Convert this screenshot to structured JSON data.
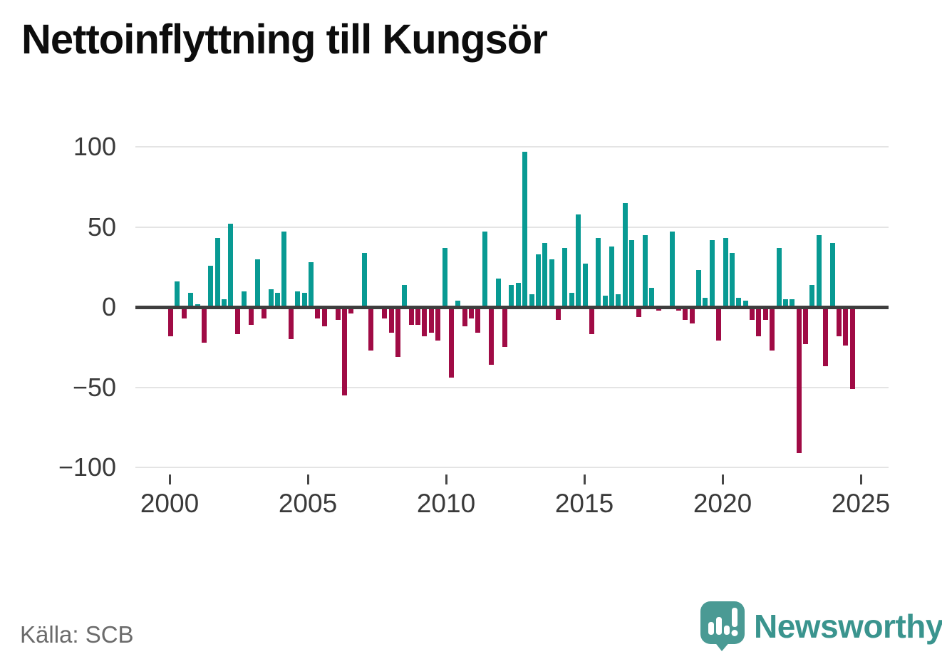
{
  "title": "Nettoinflyttning till Kungsör",
  "source": "Källa: SCB",
  "branding": {
    "name": "Newsworthy",
    "icon": "speech-bubble-bar-chart-icon",
    "color": "#3a948e"
  },
  "chart_data": {
    "type": "bar",
    "title": "Nettoinflyttning till Kungsör",
    "x_unit": "quarter",
    "x_start": "2000-Q1",
    "x_end": "2025-Q3",
    "values": [
      -18,
      16,
      -7,
      9,
      2,
      -22,
      26,
      43,
      5,
      52,
      -17,
      10,
      -11,
      30,
      -7,
      11,
      9,
      47,
      -20,
      10,
      9,
      28,
      -7,
      -12,
      0,
      -8,
      -55,
      -4,
      0,
      34,
      -27,
      0,
      -7,
      -16,
      -31,
      14,
      -11,
      -11,
      -18,
      -16,
      -21,
      37,
      -44,
      4,
      -12,
      -7,
      -16,
      47,
      -36,
      18,
      -25,
      14,
      15,
      97,
      8,
      33,
      40,
      30,
      -8,
      37,
      9,
      58,
      27,
      -17,
      43,
      7,
      38,
      8,
      65,
      42,
      -6,
      45,
      12,
      -2,
      0,
      47,
      -2,
      -8,
      -10,
      23,
      6,
      42,
      -21,
      43,
      34,
      6,
      4,
      -8,
      -18,
      -8,
      -27,
      37,
      5,
      5,
      -91,
      -23,
      14,
      45,
      -37,
      40,
      -18,
      -24,
      -51
    ],
    "x_tick_labels": [
      "2000",
      "2005",
      "2010",
      "2015",
      "2020",
      "2025"
    ],
    "y_tick_labels": [
      "100",
      "50",
      "0",
      "−50",
      "−100"
    ],
    "y_ticks": [
      100,
      50,
      0,
      -50,
      -100
    ],
    "ylim": [
      -100,
      100
    ],
    "grid": true,
    "legend": false,
    "positive_color": "#089a93",
    "negative_color": "#a00b45"
  }
}
